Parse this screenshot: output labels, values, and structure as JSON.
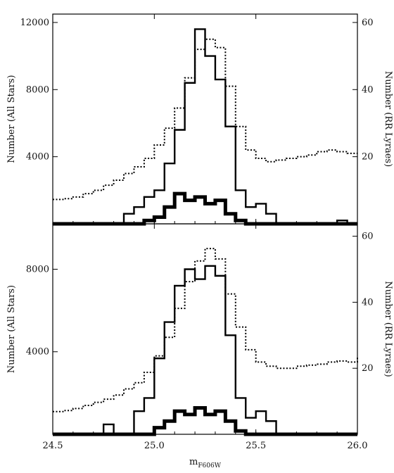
{
  "chart_data": [
    {
      "type": "line",
      "panel": "top",
      "xlabel": "m",
      "xlabel_sub": "F606W",
      "xlim": [
        24.5,
        26.0
      ],
      "xticks": [
        24.5,
        25.0,
        25.5,
        26.0
      ],
      "xtick_labels": [
        "24.5",
        "25.0",
        "25.5",
        "26.0"
      ],
      "ylabel_left": "Number (All Stars)",
      "ylim_left": [
        0,
        12500
      ],
      "yticks_left": [
        4000,
        8000,
        12000
      ],
      "ytick_labels_left": [
        "4000",
        "8000",
        "12000"
      ],
      "ylabel_right": "Number (RR Lyraes)",
      "ylim_right": [
        0,
        62.5
      ],
      "yticks_right": [
        20,
        40,
        60
      ],
      "ytick_labels_right": [
        "20",
        "40",
        "60"
      ],
      "series": [
        {
          "style": "dotted",
          "axis": "left",
          "x": [
            24.5,
            24.55,
            24.6,
            24.65,
            24.7,
            24.75,
            24.8,
            24.85,
            24.9,
            24.95,
            25.0,
            25.05,
            25.1,
            25.15,
            25.2,
            25.25,
            25.3,
            25.35,
            25.4,
            25.45,
            25.5,
            25.55,
            25.6,
            25.65,
            25.7,
            25.75,
            25.8,
            25.85,
            25.9,
            25.95,
            26.0
          ],
          "values": [
            1450,
            1500,
            1600,
            1800,
            2000,
            2300,
            2600,
            3000,
            3400,
            3900,
            4700,
            5700,
            6900,
            8700,
            10400,
            11000,
            10500,
            8200,
            5800,
            4400,
            3900,
            3700,
            3800,
            3900,
            4000,
            4100,
            4300,
            4400,
            4300,
            4200,
            4200
          ]
        },
        {
          "style": "solid",
          "axis": "right",
          "x": [
            24.5,
            24.55,
            24.6,
            24.65,
            24.7,
            24.75,
            24.8,
            24.85,
            24.9,
            24.95,
            25.0,
            25.05,
            25.1,
            25.15,
            25.2,
            25.25,
            25.3,
            25.35,
            25.4,
            25.45,
            25.5,
            25.55,
            25.6,
            25.65,
            25.7,
            25.75,
            25.8,
            25.85,
            25.9,
            25.95
          ],
          "values": [
            0,
            0,
            0,
            0,
            0,
            0,
            0,
            3,
            5,
            8,
            10,
            18,
            28,
            42,
            58,
            50,
            43,
            29,
            10,
            5,
            6,
            3,
            0,
            0,
            0,
            0,
            0,
            0,
            1,
            0
          ]
        },
        {
          "style": "thick",
          "axis": "right",
          "x": [
            24.5,
            24.55,
            24.6,
            24.65,
            24.7,
            24.75,
            24.8,
            24.85,
            24.9,
            24.95,
            25.0,
            25.05,
            25.1,
            25.15,
            25.2,
            25.25,
            25.3,
            25.35,
            25.4,
            25.45,
            25.5,
            25.55,
            25.6,
            25.65,
            25.7,
            25.75,
            25.8,
            25.85,
            25.9,
            25.95
          ],
          "values": [
            0,
            0,
            0,
            0,
            0,
            0,
            0,
            0,
            0,
            1,
            2,
            5,
            9,
            7,
            8,
            6,
            7,
            3,
            1,
            0,
            0,
            0,
            0,
            0,
            0,
            0,
            0,
            0,
            0,
            0
          ]
        }
      ]
    },
    {
      "type": "line",
      "panel": "bottom",
      "xlabel": "m",
      "xlabel_sub": "F606W",
      "xlim": [
        24.5,
        26.0
      ],
      "xticks": [
        24.5,
        25.0,
        25.5,
        26.0
      ],
      "xtick_labels": [
        "24.5",
        "25.0",
        "25.5",
        "26.0"
      ],
      "ylabel_left": "Number (All Stars)",
      "ylim_left": [
        0,
        10200
      ],
      "yticks_left": [
        4000,
        8000
      ],
      "ytick_labels_left": [
        "4000",
        "8000"
      ],
      "ylabel_right": "Number (RR Lyraes)",
      "ylim_right": [
        0,
        63.75
      ],
      "yticks_right": [
        20,
        40,
        60
      ],
      "ytick_labels_right": [
        "20",
        "40",
        "60"
      ],
      "series": [
        {
          "style": "dotted",
          "axis": "left",
          "x": [
            24.5,
            24.55,
            24.6,
            24.65,
            24.7,
            24.75,
            24.8,
            24.85,
            24.9,
            24.95,
            25.0,
            25.05,
            25.1,
            25.15,
            25.2,
            25.25,
            25.3,
            25.35,
            25.4,
            25.45,
            25.5,
            25.55,
            25.6,
            25.65,
            25.7,
            25.75,
            25.8,
            25.85,
            25.9,
            25.95,
            26.0
          ],
          "values": [
            1100,
            1150,
            1250,
            1400,
            1550,
            1700,
            1900,
            2200,
            2500,
            3000,
            3800,
            4700,
            6100,
            7400,
            8400,
            9000,
            8500,
            6800,
            5200,
            4100,
            3500,
            3300,
            3200,
            3200,
            3300,
            3350,
            3400,
            3500,
            3550,
            3500,
            3750
          ]
        },
        {
          "style": "solid",
          "axis": "right",
          "x": [
            24.5,
            24.55,
            24.6,
            24.65,
            24.7,
            24.75,
            24.8,
            24.85,
            24.9,
            24.95,
            25.0,
            25.05,
            25.1,
            25.15,
            25.2,
            25.25,
            25.3,
            25.35,
            25.4,
            25.45,
            25.5,
            25.55,
            25.6,
            25.65,
            25.7,
            25.75,
            25.8,
            25.85,
            25.9,
            25.95
          ],
          "values": [
            0,
            0,
            0,
            0,
            0,
            3,
            0,
            0,
            7,
            11,
            23,
            34,
            45,
            50,
            47,
            51,
            48,
            30,
            11,
            5,
            7,
            4,
            0,
            0,
            0,
            0,
            0,
            0,
            0,
            0
          ]
        },
        {
          "style": "thick",
          "axis": "right",
          "x": [
            24.5,
            24.55,
            24.6,
            24.65,
            24.7,
            24.75,
            24.8,
            24.85,
            24.9,
            24.95,
            25.0,
            25.05,
            25.1,
            25.15,
            25.2,
            25.25,
            25.3,
            25.35,
            25.4,
            25.45,
            25.5,
            25.55,
            25.6,
            25.65,
            25.7,
            25.75,
            25.8,
            25.85,
            25.9,
            25.95
          ],
          "values": [
            0,
            0,
            0,
            0,
            0,
            0,
            0,
            0,
            0,
            0,
            2,
            4,
            7,
            6,
            8,
            6,
            7,
            4,
            1,
            0,
            0,
            0,
            0,
            0,
            0,
            0,
            0,
            0,
            0,
            0
          ]
        }
      ]
    }
  ]
}
